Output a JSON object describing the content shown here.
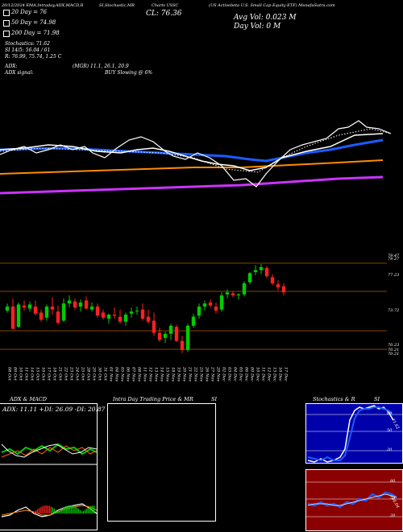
{
  "header": {
    "top_left_line": "20/12/2024 EMA,Intraday,ADX,MACD,R",
    "top_mid_line": "SI,Stochastic,MR",
    "chart_symbol": "Charts USSC",
    "company_line": "(US Activebeta U.S. Small Cap Equity ETF) MunafaSutra.com",
    "close_label": "CL: 76.36",
    "avg_vol": "Avg Vol: 0.023 M",
    "day_vol": "Day Vol: 0 M"
  },
  "ema_legend": [
    {
      "text": "20 Day = 76",
      "color": "#ffffff"
    },
    {
      "text": "50 Day = 74.98",
      "color": "#ffffff"
    },
    {
      "text": "200 Day = 71.98",
      "color": "#ffffff"
    }
  ],
  "indicators": {
    "stochastics": "Stochastics: 71.62",
    "si": "SI 14/5: 56.04 / 61",
    "r": "R: 76.99, 75.74, 1.25 C",
    "adx": "ADX:",
    "mgr": "(MGR) 11.1, 26.1, 20.9",
    "adx_signal": "ADX signal:",
    "buy_signal": "BUY Slowing @ 6%"
  },
  "price_axis": [
    "79.47",
    "79.27",
    "77.23",
    "73.72",
    "70.23",
    "70.21",
    "70.21"
  ],
  "date_labels": [
    "08 Oct",
    "09 Oct",
    "10 Oct",
    "11 Oct",
    "14 Oct",
    "15 Oct",
    "16 Oct",
    "17 Oct",
    "18 Oct",
    "21 Oct",
    "22 Oct",
    "23 Oct",
    "24 Oct",
    "25 Oct",
    "28 Oct",
    "29 Oct",
    "30 Oct",
    "31 Oct",
    "01 Nov",
    "04 Nov",
    "05 Nov",
    "06 Nov",
    "07 Nov",
    "08 Nov",
    "11 Nov",
    "12 Nov",
    "13 Nov",
    "14 Nov",
    "15 Nov",
    "18 Nov",
    "19 Nov",
    "20 Nov",
    "21 Nov",
    "22 Nov",
    "25 Nov",
    "26 Nov",
    "27 Nov",
    "29 Nov",
    "02 Dec",
    "03 Dec",
    "04 Dec",
    "05 Dec",
    "06 Dec",
    "09 Dec",
    "10 Dec",
    "11 Dec",
    "12 Dec",
    "13 Dec",
    "16 Dec",
    "17 Dec"
  ],
  "panels": {
    "adx_title": "ADX  & MACD",
    "adx_values": "ADX: 11.11 +DI: 26.09 -DI: 20.87",
    "intraday_title": "Intra  Day Trading Price  & MR",
    "intraday_si": "SI",
    "stoch_title": "Stochastics & R",
    "stoch_si": "SI",
    "stoch_levels": [
      "80",
      "50",
      "20"
    ],
    "stoch_value": "71.62",
    "rsi_levels": [
      "80",
      "50",
      "20"
    ],
    "rsi_value": "56.04"
  },
  "colors": {
    "up": "#00cc00",
    "down": "#ff2020",
    "ema20": "#ffffff",
    "ema50": "#1a5cff",
    "ema100": "#ff8c00",
    "ema200": "#cc33ff",
    "stoch_bg": "#0000aa",
    "rsi_bg": "#8b0000"
  },
  "chart_data": {
    "type": "candlestick",
    "title": "",
    "categories": [
      "08 Oct",
      "09 Oct",
      "10 Oct",
      "11 Oct",
      "14 Oct",
      "15 Oct",
      "16 Oct",
      "17 Oct",
      "18 Oct",
      "21 Oct",
      "22 Oct",
      "23 Oct",
      "24 Oct",
      "25 Oct",
      "28 Oct",
      "29 Oct",
      "30 Oct",
      "31 Oct",
      "01 Nov",
      "04 Nov",
      "05 Nov",
      "06 Nov",
      "07 Nov",
      "08 Nov",
      "11 Nov",
      "12 Nov",
      "13 Nov",
      "14 Nov",
      "15 Nov",
      "18 Nov",
      "19 Nov",
      "20 Nov",
      "21 Nov",
      "22 Nov",
      "25 Nov",
      "26 Nov",
      "27 Nov",
      "29 Nov",
      "02 Dec",
      "03 Dec",
      "04 Dec",
      "05 Dec",
      "06 Dec",
      "09 Dec",
      "10 Dec",
      "11 Dec",
      "12 Dec",
      "13 Dec",
      "16 Dec",
      "17 Dec"
    ],
    "candles": [
      [
        74.6,
        75.3,
        74.4,
        75.0
      ],
      [
        75.0,
        75.8,
        72.7,
        72.8
      ],
      [
        73.0,
        75.4,
        72.9,
        75.2
      ],
      [
        75.1,
        75.6,
        74.6,
        74.9
      ],
      [
        74.8,
        75.5,
        74.5,
        75.2
      ],
      [
        75.0,
        75.6,
        74.1,
        74.3
      ],
      [
        74.4,
        74.7,
        73.5,
        73.7
      ],
      [
        73.9,
        75.2,
        73.6,
        75.0
      ],
      [
        75.0,
        75.9,
        74.2,
        74.7
      ],
      [
        74.5,
        75.1,
        73.2,
        73.4
      ],
      [
        73.6,
        75.8,
        73.5,
        75.3
      ],
      [
        75.3,
        76.1,
        74.9,
        75.6
      ],
      [
        75.5,
        75.8,
        74.7,
        74.9
      ],
      [
        75.0,
        75.7,
        74.5,
        75.4
      ],
      [
        75.6,
        76.0,
        74.7,
        74.8
      ],
      [
        74.7,
        75.4,
        74.5,
        75.0
      ],
      [
        75.0,
        75.3,
        73.9,
        74.1
      ],
      [
        74.4,
        74.7,
        73.7,
        73.9
      ],
      [
        73.8,
        74.3,
        73.3,
        74.2
      ],
      [
        74.2,
        74.9,
        73.8,
        74.1
      ],
      [
        74.0,
        74.7,
        73.3,
        73.5
      ],
      [
        73.5,
        74.4,
        73.1,
        74.2
      ],
      [
        74.3,
        74.9,
        73.9,
        74.5
      ],
      [
        74.6,
        75.0,
        74.2,
        74.6
      ],
      [
        74.7,
        75.3,
        73.6,
        73.8
      ],
      [
        74.0,
        74.7,
        73.3,
        73.5
      ],
      [
        73.6,
        74.4,
        72.1,
        72.4
      ],
      [
        72.4,
        72.9,
        71.5,
        71.7
      ],
      [
        71.9,
        72.5,
        71.4,
        72.3
      ],
      [
        72.3,
        73.3,
        71.7,
        73.1
      ],
      [
        73.0,
        73.2,
        71.5,
        71.6
      ],
      [
        71.6,
        72.1,
        70.4,
        70.7
      ],
      [
        70.7,
        73.3,
        70.5,
        73.1
      ],
      [
        73.1,
        74.3,
        72.9,
        74.0
      ],
      [
        74.1,
        75.3,
        73.8,
        75.0
      ],
      [
        75.0,
        75.6,
        74.6,
        75.3
      ],
      [
        75.4,
        75.7,
        74.9,
        75.1
      ],
      [
        75.0,
        75.4,
        74.3,
        74.6
      ],
      [
        74.7,
        76.4,
        74.5,
        76.1
      ],
      [
        76.2,
        76.7,
        75.8,
        76.4
      ],
      [
        76.3,
        76.5,
        75.9,
        76.1
      ],
      [
        76.1,
        76.3,
        75.7,
        76.2
      ],
      [
        76.2,
        77.5,
        76.0,
        77.3
      ],
      [
        77.4,
        78.4,
        77.2,
        78.3
      ],
      [
        78.4,
        79.1,
        78.1,
        78.6
      ],
      [
        78.6,
        79.2,
        78.2,
        78.9
      ],
      [
        78.8,
        79.0,
        77.8,
        78.0
      ],
      [
        77.9,
        78.2,
        77.1,
        77.3
      ],
      [
        77.2,
        77.6,
        76.6,
        76.9
      ],
      [
        77.0,
        77.3,
        76.1,
        76.4
      ]
    ]
  }
}
